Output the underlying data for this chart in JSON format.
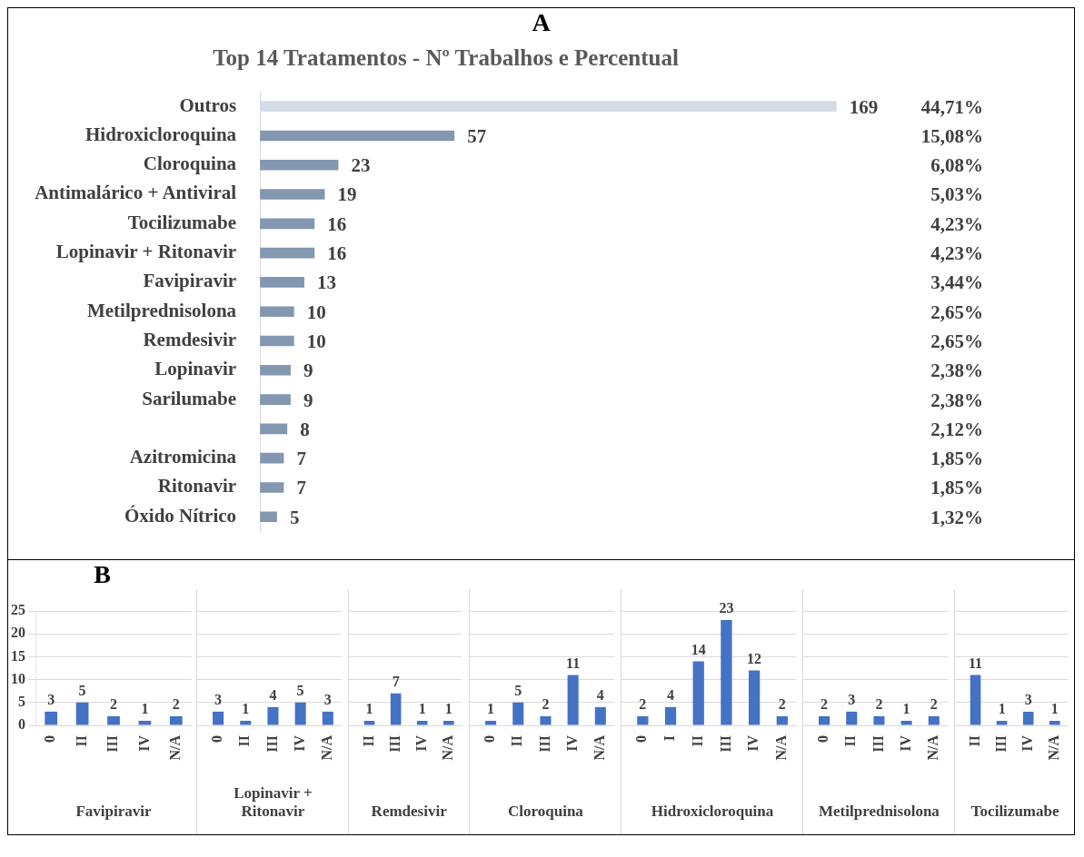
{
  "chart_data": [
    {
      "type": "bar",
      "orientation": "horizontal",
      "subtitle": "A",
      "title": "Top 14 Tratamentos - Nº Trabalhos e Percentual",
      "categories": [
        "Outros",
        "Hidroxicloroquina",
        "Cloroquina",
        "Antimalárico + Antiviral",
        "Tocilizumabe",
        "Lopinavir + Ritonavir",
        "Favipiravir",
        "Metilprednisolona",
        "Remdesivir",
        "Lopinavir",
        "Sarilumabe",
        null,
        "Azitromicina",
        "Ritonavir",
        "Óxido Nítrico"
      ],
      "values": [
        169,
        57,
        23,
        19,
        16,
        16,
        13,
        10,
        10,
        9,
        9,
        8,
        7,
        7,
        5
      ],
      "colors": [
        "#d6dce5",
        "#8497b0",
        "#8497b0",
        "#8497b0",
        "#8497b0",
        "#8497b0",
        "#8497b0",
        "#8497b0",
        "#8497b0",
        "#8497b0",
        "#8497b0",
        "#8497b0",
        "#8497b0",
        "#8497b0",
        "#8497b0"
      ],
      "data_labels": true,
      "annotations": [
        "44,71%",
        "15,08%",
        "6,08%",
        "5,03%",
        "4,23%",
        "4,23%",
        "3,44%",
        "2,65%",
        "2,65%",
        "2,38%",
        "2,38%",
        "2,12%",
        "1,85%",
        "1,85%",
        "1,32%"
      ]
    },
    {
      "type": "bar",
      "title": "B",
      "xlabel": "Favipiravir",
      "categories": [
        "0",
        "II",
        "III",
        "IV",
        "N/A"
      ],
      "values": [
        3,
        5,
        2,
        1,
        2
      ],
      "color": "#4472c4",
      "data_labels": true,
      "ylim": [
        0,
        25
      ],
      "yticks": [
        0,
        5,
        10,
        15,
        20,
        25
      ],
      "grid": "y"
    },
    {
      "type": "bar",
      "xlabel": "Lopinavir + Ritonavir",
      "categories": [
        "0",
        "II",
        "III",
        "IV",
        "N/A"
      ],
      "values": [
        3,
        1,
        4,
        5,
        3
      ],
      "color": "#4472c4",
      "data_labels": true,
      "ylim": [
        0,
        25
      ],
      "yticks": [
        0,
        5,
        10,
        15,
        20,
        25
      ],
      "grid": "y",
      "tick_labels": "x"
    },
    {
      "type": "bar",
      "xlabel": "Remdesivir",
      "categories": [
        "II",
        "III",
        "IV",
        "N/A"
      ],
      "values": [
        1,
        7,
        1,
        1
      ],
      "color": "#4472c4",
      "data_labels": true,
      "ylim": [
        0,
        25
      ],
      "yticks": [
        0,
        5,
        10,
        15,
        20,
        25
      ],
      "grid": "y",
      "tick_labels": "x"
    },
    {
      "type": "bar",
      "xlabel": "Cloroquina",
      "categories": [
        "0",
        "II",
        "III",
        "IV",
        "N/A"
      ],
      "values": [
        1,
        5,
        2,
        11,
        4
      ],
      "color": "#4472c4",
      "data_labels": true,
      "ylim": [
        0,
        25
      ],
      "yticks": [
        0,
        5,
        10,
        15,
        20,
        25
      ],
      "grid": "y",
      "tick_labels": "x"
    },
    {
      "type": "bar",
      "xlabel": "Hidroxicloroquina",
      "categories": [
        "0",
        "I",
        "II",
        "III",
        "IV",
        "N/A"
      ],
      "values": [
        2,
        4,
        14,
        23,
        12,
        2
      ],
      "color": "#4472c4",
      "data_labels": true,
      "ylim": [
        0,
        25
      ],
      "yticks": [
        0,
        5,
        10,
        15,
        20,
        25
      ],
      "grid": "y",
      "tick_labels": "x"
    },
    {
      "type": "bar",
      "xlabel": "Metilprednisolona",
      "categories": [
        "0",
        "II",
        "III",
        "IV",
        "N/A"
      ],
      "values": [
        2,
        3,
        2,
        1,
        2
      ],
      "color": "#4472c4",
      "data_labels": true,
      "ylim": [
        0,
        25
      ],
      "yticks": [
        0,
        5,
        10,
        15,
        20,
        25
      ],
      "grid": "y",
      "tick_labels": "x"
    },
    {
      "type": "bar",
      "xlabel": "Tocilizumabe",
      "categories": [
        "II",
        "III",
        "IV",
        "N/A"
      ],
      "values": [
        11,
        1,
        3,
        1
      ],
      "color": "#4472c4",
      "data_labels": true,
      "ylim": [
        0,
        25
      ],
      "yticks": [
        0,
        5,
        10,
        15,
        20,
        25
      ],
      "grid": "y",
      "tick_labels": "x"
    }
  ]
}
